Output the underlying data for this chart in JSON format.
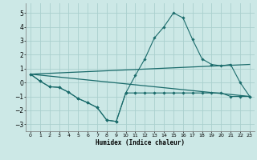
{
  "xlabel": "Humidex (Indice chaleur)",
  "xlim": [
    -0.5,
    23.5
  ],
  "ylim": [
    -3.5,
    5.7
  ],
  "yticks": [
    -3,
    -2,
    -1,
    0,
    1,
    2,
    3,
    4,
    5
  ],
  "xticks": [
    0,
    1,
    2,
    3,
    4,
    5,
    6,
    7,
    8,
    9,
    10,
    11,
    12,
    13,
    14,
    15,
    16,
    17,
    18,
    19,
    20,
    21,
    22,
    23
  ],
  "bg_color": "#cce8e6",
  "grid_color": "#aacfcd",
  "line_color": "#1a6b6b",
  "lines": [
    {
      "x": [
        0,
        1,
        2,
        3,
        4,
        5,
        6,
        7,
        8,
        9,
        10,
        11,
        12,
        13,
        14,
        15,
        16,
        17,
        18,
        19,
        20,
        21,
        22,
        23
      ],
      "y": [
        0.6,
        0.1,
        -0.3,
        -0.35,
        -0.7,
        -1.15,
        -1.45,
        -1.8,
        -2.7,
        -2.8,
        -0.75,
        -0.75,
        -0.75,
        -0.75,
        -0.75,
        -0.75,
        -0.75,
        -0.75,
        -0.75,
        -0.75,
        -0.75,
        -1.0,
        -1.0,
        -1.0
      ],
      "marker": true
    },
    {
      "x": [
        0,
        1,
        2,
        3,
        4,
        5,
        6,
        7,
        8,
        9,
        10,
        11,
        12,
        13,
        14,
        15,
        16,
        17,
        18,
        19,
        20,
        21,
        22,
        23
      ],
      "y": [
        0.6,
        0.1,
        -0.3,
        -0.35,
        -0.7,
        -1.15,
        -1.45,
        -1.8,
        -2.7,
        -2.8,
        -0.75,
        0.5,
        1.7,
        3.2,
        4.0,
        5.0,
        4.65,
        3.1,
        1.7,
        1.3,
        1.2,
        1.3,
        0.0,
        -1.0
      ],
      "marker": true
    },
    {
      "x": [
        0,
        23
      ],
      "y": [
        0.6,
        1.3
      ],
      "marker": false
    },
    {
      "x": [
        0,
        23
      ],
      "y": [
        0.6,
        -1.0
      ],
      "marker": false
    }
  ]
}
